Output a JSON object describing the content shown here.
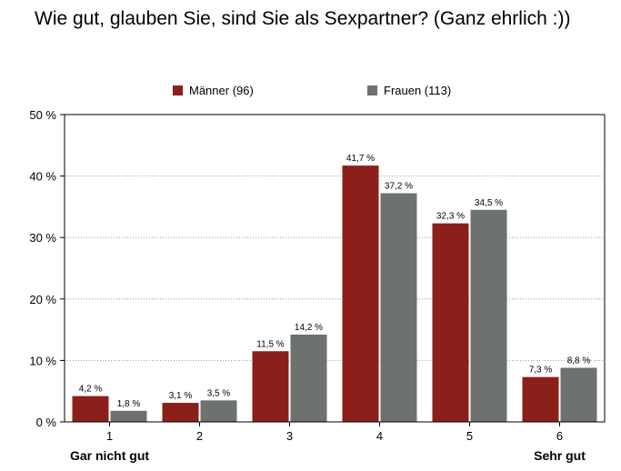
{
  "chart_data": {
    "type": "bar",
    "title": "Wie gut, glauben Sie, sind Sie als Sexpartner? (Ganz ehrlich :))",
    "categories": [
      "1",
      "2",
      "3",
      "4",
      "5",
      "6"
    ],
    "category_captions": {
      "first": "Gar nicht gut",
      "last": "Sehr gut"
    },
    "series": [
      {
        "name": "Männer (96)",
        "color": "#8b1f1a",
        "values": [
          4.2,
          3.1,
          11.5,
          41.7,
          32.3,
          7.3
        ],
        "labels": [
          "4,2 %",
          "3,1 %",
          "11,5 %",
          "41,7 %",
          "32,3 %",
          "7,3 %"
        ]
      },
      {
        "name": "Frauen (113)",
        "color": "#6d726f",
        "values": [
          1.8,
          3.5,
          14.2,
          37.2,
          34.5,
          8.8
        ],
        "labels": [
          "1,8 %",
          "3,5 %",
          "14,2 %",
          "37,2 %",
          "34,5 %",
          "8,8 %"
        ]
      }
    ],
    "ylim": [
      0,
      50
    ],
    "yticks": [
      0,
      10,
      20,
      30,
      40,
      50
    ],
    "ytick_labels": [
      "0 %",
      "10 %",
      "20 %",
      "30 %",
      "40 %",
      "50 %"
    ],
    "xlabel": "",
    "ylabel": "",
    "grid": "horizontal dotted",
    "legend_position": "top"
  }
}
